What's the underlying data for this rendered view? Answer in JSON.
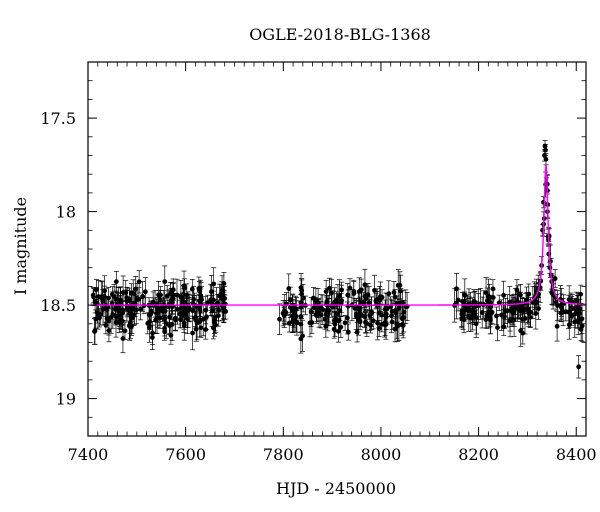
{
  "chart_data": {
    "type": "scatter",
    "title": "OGLE-2018-BLG-1368",
    "xlabel": "HJD - 2450000",
    "ylabel": "I magnitude",
    "xlim": [
      7400,
      8420
    ],
    "ylim": [
      19.2,
      17.2
    ],
    "y_inverted": true,
    "xticks": [
      7400,
      7600,
      7800,
      8000,
      8200,
      8400
    ],
    "yticks": [
      17.5,
      18,
      18.5,
      19
    ],
    "ytick_labels": [
      "17.5",
      "18",
      "18.5",
      "19"
    ],
    "grid": false,
    "colors": {
      "data": "#000000",
      "model": "#ff00ff"
    },
    "seasons": [
      {
        "start": 7410,
        "end": 7685,
        "baseline": 18.52,
        "scatter": 0.06,
        "count": 230
      },
      {
        "start": 7790,
        "end": 8055,
        "baseline": 18.52,
        "scatter": 0.06,
        "count": 170
      },
      {
        "start": 8150,
        "end": 8415,
        "baseline": 18.52,
        "scatter": 0.05,
        "count": 170
      }
    ],
    "model": {
      "baseline": 18.5,
      "peak_time": 8338,
      "peak_magnitude": 17.75,
      "timescale_days": 4.5
    },
    "peak_points": [
      {
        "x": 8331,
        "y": 18.1
      },
      {
        "x": 8333,
        "y": 17.95
      },
      {
        "x": 8335,
        "y": 17.7
      },
      {
        "x": 8336,
        "y": 17.65
      },
      {
        "x": 8337,
        "y": 17.67
      },
      {
        "x": 8338,
        "y": 17.72
      },
      {
        "x": 8339,
        "y": 17.85
      },
      {
        "x": 8341,
        "y": 18.0
      },
      {
        "x": 8343,
        "y": 18.15
      },
      {
        "x": 8346,
        "y": 18.3
      }
    ],
    "outliers": [
      {
        "x": 8405,
        "y": 18.83
      },
      {
        "x": 8410,
        "y": 18.63
      }
    ]
  }
}
